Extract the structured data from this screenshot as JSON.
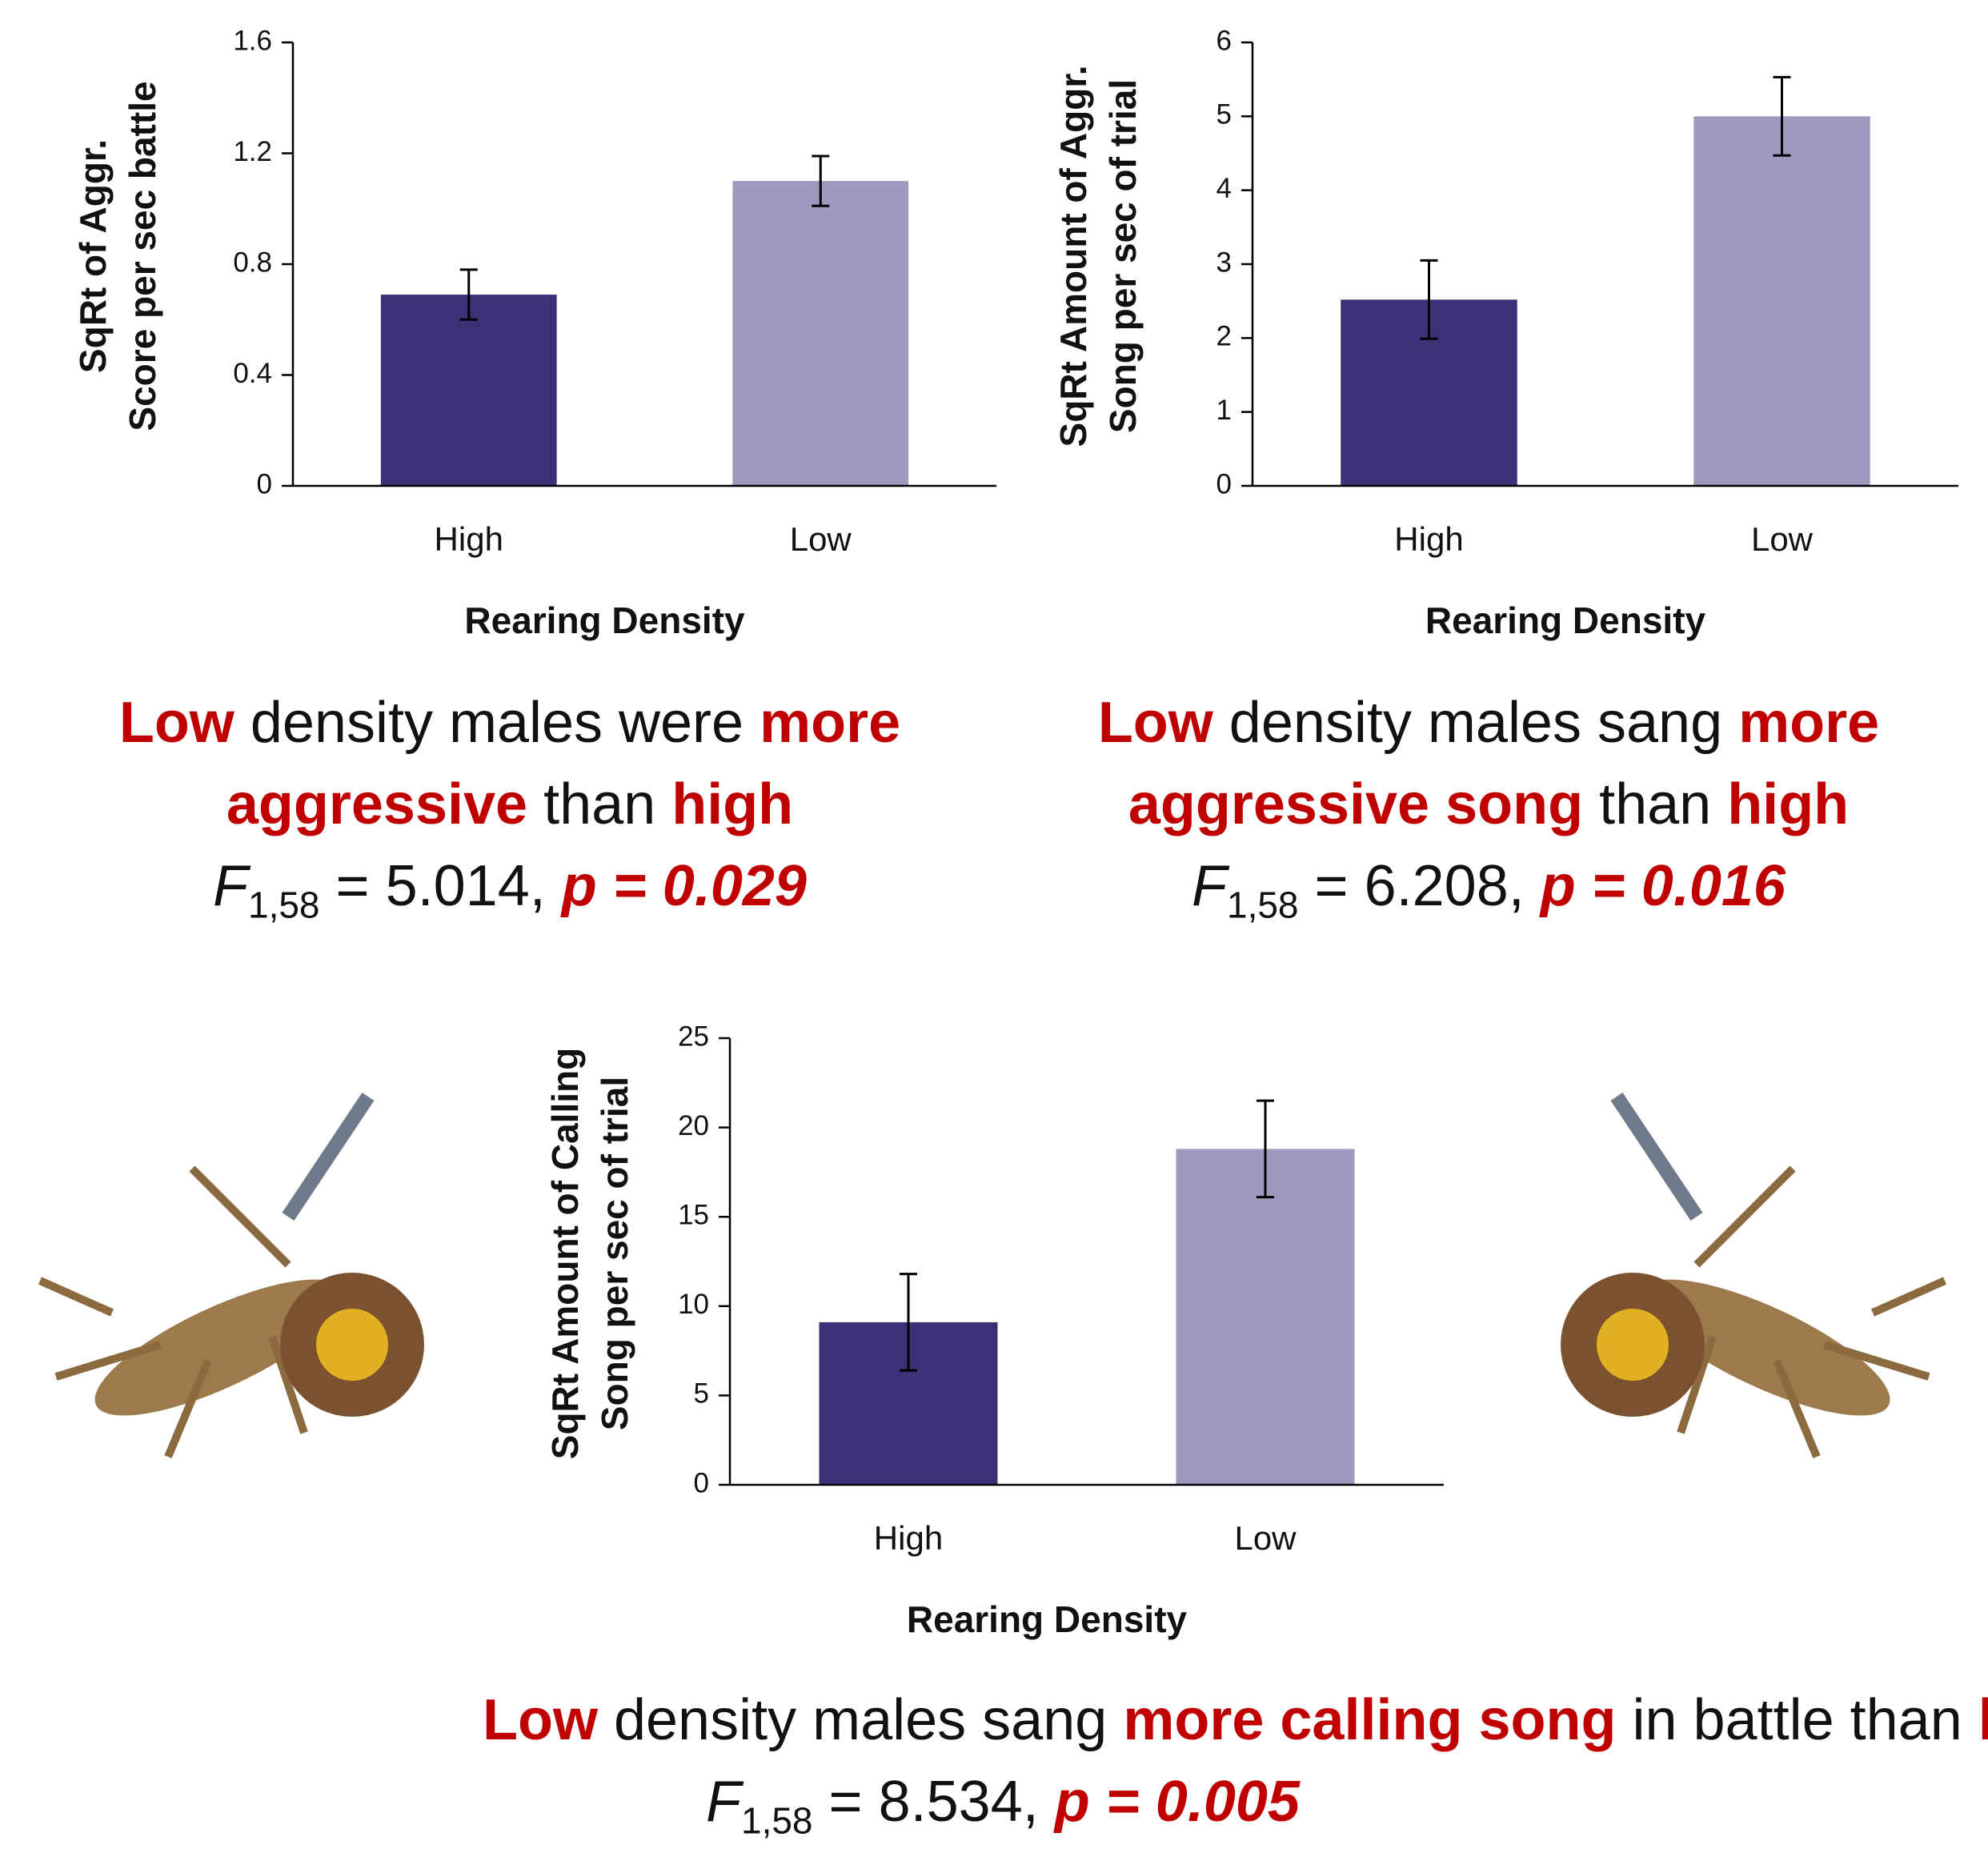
{
  "chart_data": [
    {
      "type": "bar",
      "categories": [
        "High",
        "Low"
      ],
      "values": [
        0.69,
        1.1
      ],
      "errors": [
        0.09,
        0.09
      ],
      "colors": [
        "#3b3177",
        "#9e99bf"
      ],
      "ylim": [
        0,
        1.6
      ],
      "yticks": [
        0,
        0.4,
        0.8,
        1.2,
        1.6
      ],
      "ylabel": [
        "SqRt of Aggr.",
        "Score per sec battle"
      ],
      "xlabel": "Rearing Density",
      "caption": [
        [
          {
            "text": "Low",
            "em": true
          },
          {
            "text": " density males were ",
            "em": false
          },
          {
            "text": "more",
            "em": true
          }
        ],
        [
          {
            "text": "aggressive",
            "em": true
          },
          {
            "text": " than ",
            "em": false
          },
          {
            "text": "high",
            "em": true
          }
        ]
      ],
      "stat": {
        "symbol": "F",
        "df": "1,58",
        "value": " = 5.014, ",
        "p": "p = 0.029"
      }
    },
    {
      "type": "bar",
      "categories": [
        "High",
        "Low"
      ],
      "values": [
        2.52,
        5.0
      ],
      "errors": [
        0.53,
        0.53
      ],
      "colors": [
        "#3b3177",
        "#9e99bf"
      ],
      "ylim": [
        0,
        6
      ],
      "yticks": [
        0,
        1,
        2,
        3,
        4,
        5,
        6
      ],
      "ylabel": [
        "SqRt Amount of Aggr.",
        "Song per sec of trial"
      ],
      "xlabel": "Rearing Density",
      "caption": [
        [
          {
            "text": "Low",
            "em": true
          },
          {
            "text": " density males sang ",
            "em": false
          },
          {
            "text": "more",
            "em": true
          }
        ],
        [
          {
            "text": "aggressive song",
            "em": true
          },
          {
            "text": " than ",
            "em": false
          },
          {
            "text": "high",
            "em": true
          }
        ]
      ],
      "stat": {
        "symbol": "F",
        "df": "1,58",
        "value": " = 6.208, ",
        "p": "p = 0.016"
      }
    },
    {
      "type": "bar",
      "categories": [
        "High",
        "Low"
      ],
      "values": [
        9.1,
        18.8
      ],
      "errors": [
        2.7,
        2.7
      ],
      "colors": [
        "#3b3177",
        "#9e99bf"
      ],
      "ylim": [
        0,
        25
      ],
      "yticks": [
        0,
        5,
        10,
        15,
        20,
        25
      ],
      "ylabel": [
        "SqRt Amount of Calling",
        "Song per sec of trial"
      ],
      "xlabel": "Rearing Density",
      "caption": [
        [
          {
            "text": "Low",
            "em": true
          },
          {
            "text": " density males sang ",
            "em": false
          },
          {
            "text": "more calling song",
            "em": true
          },
          {
            "text": " in battle than ",
            "em": false
          },
          {
            "text": "high",
            "em": true
          }
        ]
      ],
      "stat": {
        "symbol": "F",
        "df": "1,58",
        "value": " = 8.534, ",
        "p": "p = 0.005"
      }
    }
  ],
  "emphasis_color": "#c00000"
}
